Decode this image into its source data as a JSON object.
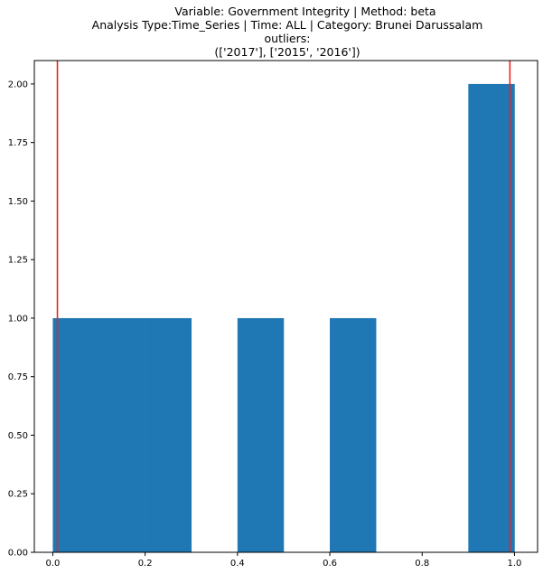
{
  "chart_data": {
    "type": "bar",
    "title_lines": [
      "Variable: Government Integrity | Method: beta",
      "Analysis Type:Time_Series | Time: ALL | Category: Brunei Darussalam",
      "outliers:",
      "(['2017'], ['2015', '2016'])"
    ],
    "xlabel": "",
    "ylabel": "",
    "xlim": [
      -0.04,
      1.05
    ],
    "ylim": [
      0,
      2.1
    ],
    "x_ticks": [
      0.0,
      0.2,
      0.4,
      0.6,
      0.8,
      1.0
    ],
    "x_tick_labels": [
      "0.0",
      "0.2",
      "0.4",
      "0.6",
      "0.8",
      "1.0"
    ],
    "y_ticks": [
      0.0,
      0.25,
      0.5,
      0.75,
      1.0,
      1.25,
      1.5,
      1.75,
      2.0
    ],
    "y_tick_labels": [
      "0.00",
      "0.25",
      "0.50",
      "0.75",
      "1.00",
      "1.25",
      "1.50",
      "1.75",
      "2.00"
    ],
    "bins": [
      {
        "x0": 0.0,
        "x1": 0.1,
        "count": 1
      },
      {
        "x0": 0.1,
        "x1": 0.2,
        "count": 1
      },
      {
        "x0": 0.2,
        "x1": 0.3,
        "count": 1
      },
      {
        "x0": 0.3,
        "x1": 0.4,
        "count": 0
      },
      {
        "x0": 0.4,
        "x1": 0.5,
        "count": 1
      },
      {
        "x0": 0.5,
        "x1": 0.6,
        "count": 0
      },
      {
        "x0": 0.6,
        "x1": 0.7,
        "count": 1
      },
      {
        "x0": 0.7,
        "x1": 0.8,
        "count": 0
      },
      {
        "x0": 0.8,
        "x1": 0.9,
        "count": 0
      },
      {
        "x0": 0.9,
        "x1": 1.0,
        "count": 2
      }
    ],
    "threshold_lines": [
      0.01,
      0.99
    ],
    "bar_color": "#1f77b4",
    "line_color": "#e8261d",
    "grid": false,
    "legend": "none"
  }
}
